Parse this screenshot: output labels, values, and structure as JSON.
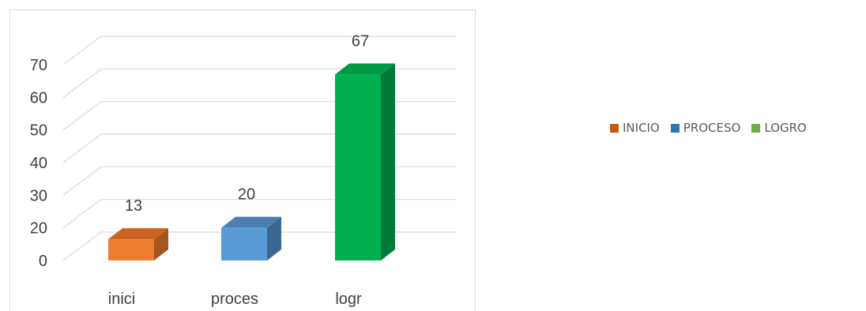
{
  "chart_data": {
    "type": "bar",
    "style": "3d-column",
    "categories": [
      "inici",
      "proces",
      "logr"
    ],
    "values": [
      13,
      20,
      67
    ],
    "data_labels": [
      "13",
      "20",
      "67"
    ],
    "y_ticks": [
      "0",
      "20",
      "30",
      "40",
      "50",
      "60",
      "70"
    ],
    "ylim": [
      0,
      70
    ],
    "grid": true,
    "legend_position": "right",
    "legend": [
      {
        "label": "INICIO",
        "color": "#c55a11"
      },
      {
        "label": "PROCESO",
        "color": "#2e75b6"
      },
      {
        "label": "LOGRO",
        "color": "#70ad47"
      }
    ],
    "bar_colors": [
      {
        "front": "#ed7d31",
        "side": "#a5561f",
        "top": "#c9631f"
      },
      {
        "front": "#5b9bd5",
        "side": "#3a6894",
        "top": "#4b7fb1"
      },
      {
        "front": "#00b050",
        "side": "#007a38",
        "top": "#009a45"
      }
    ],
    "title": "",
    "xlabel": "",
    "ylabel": ""
  }
}
